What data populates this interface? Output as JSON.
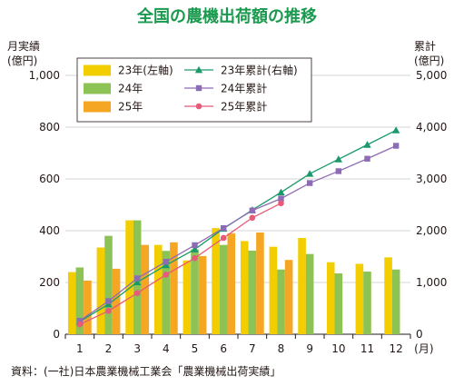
{
  "chart_data": {
    "type": "bar",
    "title": "全国の農機出荷額の推移",
    "left_axis_label": [
      "月実績",
      "(億円)"
    ],
    "right_axis_label": [
      "累計",
      "(億円)"
    ],
    "x_unit": "(月)",
    "categories": [
      "1",
      "2",
      "3",
      "4",
      "5",
      "6",
      "7",
      "8",
      "9",
      "10",
      "11",
      "12"
    ],
    "ylim_left": [
      0,
      1000
    ],
    "ylim_right": [
      0,
      5000
    ],
    "yticks_left": [
      "0",
      "200",
      "400",
      "600",
      "800",
      "1,000"
    ],
    "yticks_right": [
      "0",
      "1,000",
      "2,000",
      "3,000",
      "4,000",
      "5,000"
    ],
    "grid": true,
    "legend_placement": "top",
    "bar_series": [
      {
        "name": "23年(左軸)",
        "color": "#f2cd00",
        "values": [
          240,
          335,
          440,
          345,
          285,
          410,
          360,
          338,
          372,
          278,
          272,
          297
        ]
      },
      {
        "name": "24年",
        "color": "#8dc354",
        "values": [
          258,
          380,
          440,
          322,
          328,
          345,
          323,
          250,
          310,
          235,
          242,
          250
        ]
      },
      {
        "name": "25年",
        "color": "#f5a623",
        "values": [
          207,
          253,
          345,
          355,
          302,
          390,
          393,
          287,
          null,
          null,
          null,
          null
        ]
      }
    ],
    "line_series": [
      {
        "name": "23年累計(右軸)",
        "color": "#1a9a6a",
        "marker": "triangle",
        "values": [
          245,
          580,
          1005,
          1335,
          1640,
          2040,
          2400,
          2740,
          3100,
          3380,
          3660,
          3940
        ]
      },
      {
        "name": "24年累計",
        "color": "#8e6bb5",
        "marker": "square",
        "values": [
          260,
          640,
          1080,
          1400,
          1720,
          2050,
          2390,
          2620,
          2920,
          3150,
          3390,
          3640
        ]
      },
      {
        "name": "25年累計",
        "color": "#e85a78",
        "marker": "circle",
        "values": [
          190,
          450,
          795,
          1150,
          1470,
          1860,
          2250,
          2530,
          null,
          null,
          null,
          null
        ]
      }
    ]
  },
  "source": "資料：(一社)日本農業機械工業会「農業機械出荷実績」"
}
